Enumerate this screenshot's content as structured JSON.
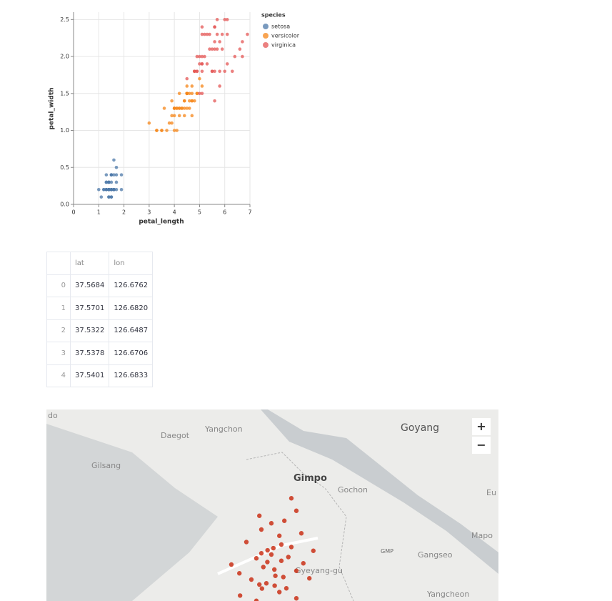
{
  "chart_data": {
    "type": "scatter",
    "x_label": "petal_length",
    "y_label": "petal_width",
    "xlim": [
      0,
      7
    ],
    "ylim": [
      0,
      2.6
    ],
    "xticks": [
      0,
      1,
      2,
      3,
      4,
      5,
      6,
      7
    ],
    "yticks": [
      {
        "value": 0,
        "label": "0.0"
      },
      0.5,
      {
        "value": 1,
        "label": "1.0"
      },
      1.5,
      {
        "value": 2,
        "label": "2.0"
      },
      2.5
    ],
    "grid": true,
    "legend_title": "species",
    "legend_position": "right",
    "series": [
      {
        "name": "setosa",
        "color": "#4c78a8",
        "x": [
          1.4,
          1.4,
          1.3,
          1.5,
          1.4,
          1.7,
          1.4,
          1.5,
          1.4,
          1.5,
          1.5,
          1.6,
          1.4,
          1.1,
          1.2,
          1.5,
          1.3,
          1.4,
          1.7,
          1.5,
          1.7,
          1.5,
          1.0,
          1.7,
          1.9,
          1.6,
          1.6,
          1.5,
          1.4,
          1.6,
          1.6,
          1.5,
          1.5,
          1.4,
          1.5,
          1.2,
          1.3,
          1.4,
          1.3,
          1.5,
          1.3,
          1.3,
          1.3,
          1.6,
          1.9,
          1.4,
          1.6,
          1.4,
          1.5,
          1.4
        ],
        "values": [
          0.2,
          0.2,
          0.2,
          0.2,
          0.2,
          0.4,
          0.3,
          0.2,
          0.2,
          0.1,
          0.2,
          0.2,
          0.1,
          0.1,
          0.2,
          0.4,
          0.4,
          0.3,
          0.3,
          0.3,
          0.2,
          0.4,
          0.2,
          0.5,
          0.2,
          0.2,
          0.4,
          0.2,
          0.2,
          0.2,
          0.2,
          0.4,
          0.1,
          0.2,
          0.2,
          0.2,
          0.2,
          0.1,
          0.2,
          0.2,
          0.3,
          0.3,
          0.2,
          0.6,
          0.4,
          0.3,
          0.2,
          0.2,
          0.2,
          0.2
        ]
      },
      {
        "name": "versicolor",
        "color": "#f58518",
        "x": [
          4.7,
          4.5,
          4.9,
          4.0,
          4.6,
          4.5,
          4.7,
          3.3,
          4.6,
          3.9,
          3.5,
          4.2,
          4.0,
          4.7,
          3.6,
          4.4,
          4.5,
          4.1,
          4.5,
          3.9,
          4.8,
          4.0,
          4.9,
          4.7,
          4.3,
          4.4,
          4.8,
          5.0,
          4.5,
          3.5,
          3.8,
          3.7,
          3.9,
          5.1,
          4.5,
          4.5,
          4.7,
          4.4,
          4.1,
          4.0,
          4.4,
          4.6,
          4.0,
          3.3,
          4.2,
          4.2,
          4.2,
          4.3,
          3.0,
          4.1
        ],
        "values": [
          1.4,
          1.5,
          1.5,
          1.3,
          1.5,
          1.3,
          1.6,
          1.0,
          1.3,
          1.4,
          1.0,
          1.5,
          1.0,
          1.4,
          1.3,
          1.4,
          1.5,
          1.0,
          1.5,
          1.1,
          1.8,
          1.3,
          1.5,
          1.2,
          1.3,
          1.4,
          1.4,
          1.7,
          1.5,
          1.0,
          1.1,
          1.0,
          1.2,
          1.6,
          1.5,
          1.6,
          1.5,
          1.3,
          1.3,
          1.3,
          1.2,
          1.4,
          1.2,
          1.0,
          1.3,
          1.2,
          1.3,
          1.3,
          1.1,
          1.3
        ]
      },
      {
        "name": "virginica",
        "color": "#e45756",
        "x": [
          6.0,
          5.1,
          5.9,
          5.6,
          5.8,
          6.6,
          4.5,
          6.3,
          5.8,
          6.1,
          5.1,
          5.3,
          5.5,
          5.0,
          5.1,
          5.3,
          5.5,
          6.7,
          6.9,
          5.0,
          5.7,
          4.9,
          6.7,
          4.9,
          5.7,
          6.0,
          4.8,
          4.9,
          5.6,
          5.8,
          6.1,
          6.4,
          5.6,
          5.1,
          5.6,
          6.1,
          5.6,
          5.5,
          4.8,
          5.4,
          5.6,
          5.1,
          5.1,
          5.9,
          5.7,
          5.2,
          5.0,
          5.2,
          5.4,
          5.1
        ],
        "values": [
          2.5,
          1.9,
          2.1,
          1.8,
          2.2,
          2.1,
          1.7,
          1.8,
          1.8,
          2.5,
          2.0,
          1.9,
          2.1,
          2.0,
          2.4,
          2.3,
          1.8,
          2.2,
          2.3,
          1.5,
          2.3,
          2.0,
          2.0,
          1.8,
          2.1,
          1.8,
          1.8,
          1.8,
          2.1,
          1.6,
          1.9,
          2.0,
          2.2,
          1.5,
          1.4,
          2.3,
          2.4,
          1.8,
          1.8,
          2.1,
          2.4,
          2.3,
          1.9,
          2.3,
          2.5,
          2.3,
          1.9,
          2.0,
          2.3,
          1.8
        ]
      }
    ]
  },
  "table": {
    "columns": [
      "lat",
      "lon"
    ],
    "index": [
      "0",
      "1",
      "2",
      "3",
      "4"
    ],
    "rows": [
      [
        "37.5684",
        "126.6762"
      ],
      [
        "37.5701",
        "126.6820"
      ],
      [
        "37.5322",
        "126.6487"
      ],
      [
        "37.5378",
        "126.6706"
      ],
      [
        "37.5401",
        "126.6833"
      ]
    ]
  },
  "map": {
    "dot_color": "#c8250a",
    "labels": [
      "do",
      "Daegot",
      "Yangchon",
      "Goyang",
      "Gilsang",
      "Gimpo",
      "Gochon",
      "Eu",
      "Mapo",
      "GMP",
      "Gangseo",
      "Yangcheon",
      "Gyeyang-gu"
    ],
    "zoom_in": "+",
    "zoom_out": "−",
    "points": [
      [
        37.5684,
        126.6762
      ],
      [
        37.5701,
        126.682
      ],
      [
        37.5322,
        126.6487
      ],
      [
        37.5378,
        126.6706
      ],
      [
        37.5401,
        126.6833
      ],
      [
        37.56,
        126.69
      ],
      [
        37.555,
        126.672
      ],
      [
        37.548,
        126.684
      ],
      [
        37.562,
        126.665
      ],
      [
        37.571,
        126.7
      ],
      [
        37.545,
        126.66
      ],
      [
        37.538,
        126.695
      ],
      [
        37.552,
        126.705
      ],
      [
        37.565,
        126.68
      ],
      [
        37.58,
        126.688
      ],
      [
        37.592,
        126.693
      ],
      [
        37.6,
        126.705
      ],
      [
        37.585,
        126.67
      ],
      [
        37.575,
        126.655
      ],
      [
        37.542,
        126.675
      ],
      [
        37.535,
        126.688
      ],
      [
        37.528,
        126.665
      ],
      [
        37.55,
        126.648
      ],
      [
        37.558,
        126.712
      ],
      [
        37.568,
        126.722
      ],
      [
        37.546,
        126.718
      ],
      [
        37.59,
        126.68
      ],
      [
        37.61,
        126.7
      ],
      [
        37.557,
        126.64
      ],
      [
        37.53,
        126.705
      ],
      [
        37.573,
        126.69
      ],
      [
        37.563,
        126.697
      ],
      [
        37.553,
        126.683
      ],
      [
        37.547,
        126.692
      ],
      [
        37.559,
        126.676
      ],
      [
        37.566,
        126.67
      ],
      [
        37.541,
        126.668
      ],
      [
        37.582,
        126.71
      ],
      [
        37.596,
        126.668
      ],
      [
        37.525,
        126.68
      ]
    ]
  }
}
